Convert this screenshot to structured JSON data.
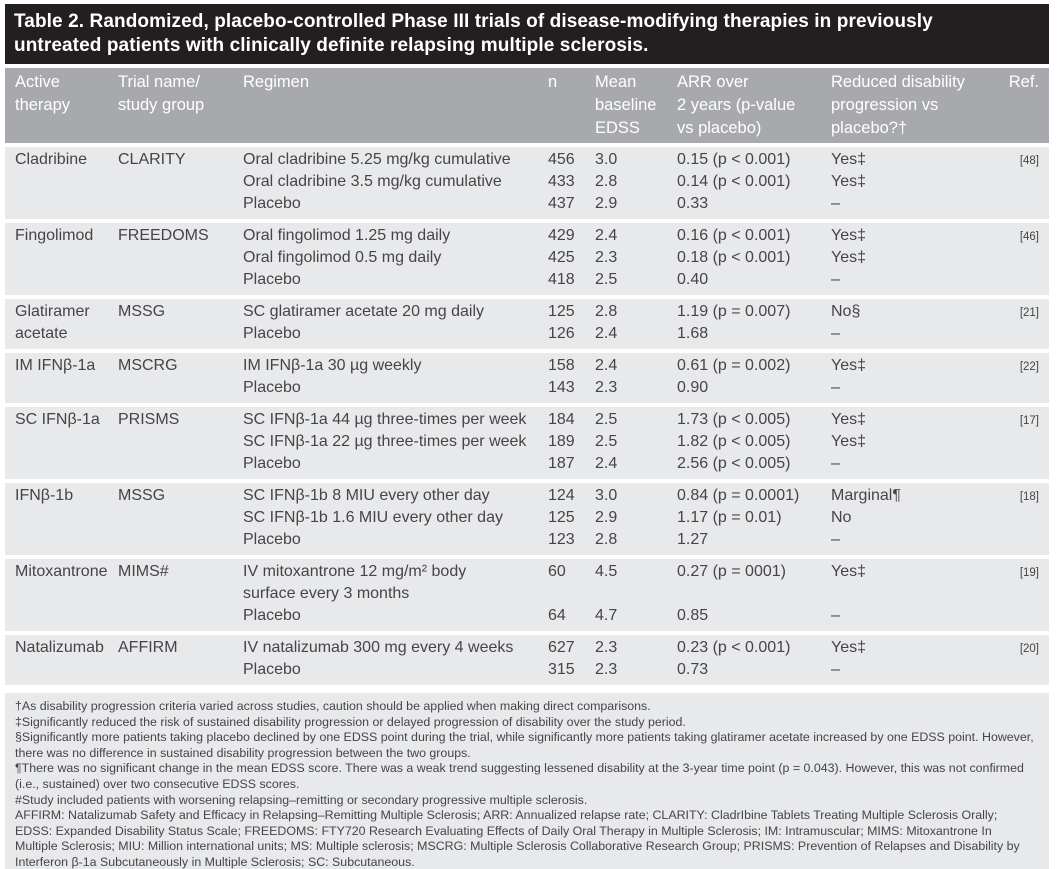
{
  "title": "Table 2. Randomized, placebo-controlled Phase III trials of disease-modifying therapies in previously\nuntreated patients with clinically definite relapsing multiple sclerosis.",
  "colors": {
    "title_bar_bg": "#231f20",
    "title_text": "#ffffff",
    "header_bg": "#a7a9ac",
    "header_text": "#ffffff",
    "row_bg": "#e8e9ea",
    "body_text": "#454547"
  },
  "table": {
    "columns": {
      "therapy": "Active\ntherapy",
      "trial": "Trial name/\nstudy group",
      "regimen": "Regimen",
      "n": "n",
      "edss": "Mean\nbaseline\nEDSS",
      "arr": "ARR over\n2 years (p-value\nvs placebo)",
      "reduced": "Reduced disability\nprogression vs\nplacebo?†",
      "ref": "Ref."
    },
    "rows": [
      {
        "therapy": "Cladribine",
        "trial": "CLARITY",
        "regimen": [
          "Oral cladribine 5.25 mg/kg cumulative",
          "Oral cladribine 3.5 mg/kg cumulative",
          "Placebo"
        ],
        "n": [
          "456",
          "433",
          "437"
        ],
        "edss": [
          "3.0",
          "2.8",
          "2.9"
        ],
        "arr": [
          "0.15 (p < 0.001)",
          "0.14 (p < 0.001)",
          "0.33"
        ],
        "reduced": [
          "Yes‡",
          "Yes‡",
          "–"
        ],
        "ref": "[48]"
      },
      {
        "therapy": "Fingolimod",
        "trial": "FREEDOMS",
        "regimen": [
          "Oral fingolimod 1.25 mg daily",
          "Oral fingolimod 0.5 mg daily",
          "Placebo"
        ],
        "n": [
          "429",
          "425",
          "418"
        ],
        "edss": [
          "2.4",
          "2.3",
          "2.5"
        ],
        "arr": [
          "0.16 (p < 0.001)",
          "0.18 (p < 0.001)",
          "0.40"
        ],
        "reduced": [
          "Yes‡",
          "Yes‡",
          "–"
        ],
        "ref": "[46]"
      },
      {
        "therapy": "Glatiramer acetate",
        "trial": "MSSG",
        "regimen": [
          "SC glatiramer acetate 20 mg daily",
          "Placebo"
        ],
        "n": [
          "125",
          "126"
        ],
        "edss": [
          "2.8",
          "2.4"
        ],
        "arr": [
          "1.19 (p = 0.007)",
          "1.68"
        ],
        "reduced": [
          "No§",
          "–"
        ],
        "ref": "[21]"
      },
      {
        "therapy": "IM IFNβ-1a",
        "trial": "MSCRG",
        "regimen": [
          "IM IFNβ-1a 30 µg weekly",
          "Placebo"
        ],
        "n": [
          "158",
          "143"
        ],
        "edss": [
          "2.4",
          "2.3"
        ],
        "arr": [
          "0.61 (p = 0.002)",
          "0.90"
        ],
        "reduced": [
          "Yes‡",
          "–"
        ],
        "ref": "[22]"
      },
      {
        "therapy": "SC IFNβ-1a",
        "trial": "PRISMS",
        "regimen": [
          "SC IFNβ-1a 44 µg three-times per week",
          "SC IFNβ-1a 22 µg three-times per week",
          "Placebo"
        ],
        "n": [
          "184",
          "189",
          "187"
        ],
        "edss": [
          "2.5",
          "2.5",
          "2.4"
        ],
        "arr": [
          "1.73 (p < 0.005)",
          "1.82 (p < 0.005)",
          "2.56 (p < 0.005)"
        ],
        "reduced": [
          "Yes‡",
          "Yes‡",
          "–"
        ],
        "ref": "[17]"
      },
      {
        "therapy": "IFNβ-1b",
        "trial": "MSSG",
        "regimen": [
          "SC IFNβ-1b 8 MIU every other day",
          "SC IFNβ-1b 1.6 MIU every other day",
          "Placebo"
        ],
        "n": [
          "124",
          "125",
          "123"
        ],
        "edss": [
          "3.0",
          "2.9",
          "2.8"
        ],
        "arr": [
          "0.84 (p = 0.0001)",
          "1.17 (p = 0.01)",
          "1.27"
        ],
        "reduced": [
          "Marginal¶",
          "No",
          "–"
        ],
        "ref": "[18]"
      },
      {
        "therapy": "Mitoxantrone",
        "trial": "MIMS#",
        "regimen": [
          "IV mitoxantrone 12 mg/m² body",
          "surface every 3 months",
          "Placebo"
        ],
        "n": [
          "60",
          "",
          "64"
        ],
        "edss": [
          "4.5",
          "",
          "4.7"
        ],
        "arr": [
          "0.27 (p = 0001)",
          "",
          "0.85"
        ],
        "reduced": [
          "Yes‡",
          "",
          "–"
        ],
        "ref": "[19]"
      },
      {
        "therapy": "Natalizumab",
        "trial": "AFFIRM",
        "regimen": [
          "IV natalizumab 300 mg every 4 weeks",
          "Placebo"
        ],
        "n": [
          "627",
          "315"
        ],
        "edss": [
          "2.3",
          "2.3"
        ],
        "arr": [
          "0.23 (p < 0.001)",
          "0.73"
        ],
        "reduced": [
          "Yes‡",
          "–"
        ],
        "ref": "[20]"
      }
    ]
  },
  "footnotes": [
    "†As disability progression criteria varied across studies, caution should be applied when making direct comparisons.",
    "‡Significantly reduced the risk of sustained disability progression or delayed progression of disability over the study period.",
    "§Significantly more patients taking placebo declined by one EDSS point during the trial, while significantly more patients taking glatiramer acetate increased by one EDSS point. However, there was no difference in sustained disability progression between the two groups.",
    "¶There was no significant change in the mean EDSS score. There was a weak trend suggesting lessened disability at the 3-year time point (p = 0.043). However, this was not confirmed (i.e., sustained) over two consecutive EDSS scores.",
    "#Study included patients with worsening relapsing–remitting or secondary progressive multiple sclerosis.",
    "AFFIRM: Natalizumab Safety and Efficacy in Relapsing–Remitting Multiple Sclerosis; ARR: Annualized relapse rate; CLARITY: CladrIbine Tablets Treating Multiple Sclerosis Orally; EDSS: Expanded Disability Status Scale; FREEDOMS: FTY720 Research Evaluating Effects of Daily Oral Therapy in Multiple Sclerosis; IM: Intramuscular; MIMS: Mitoxantrone In Multiple Sclerosis; MIU: Million international units; MS: Multiple sclerosis; MSCRG: Multiple Sclerosis Collaborative Research Group; PRISMS: Prevention of Relapses and Disability by Interferon β-1a Subcutaneously in Multiple Sclerosis; SC: Subcutaneous."
  ]
}
